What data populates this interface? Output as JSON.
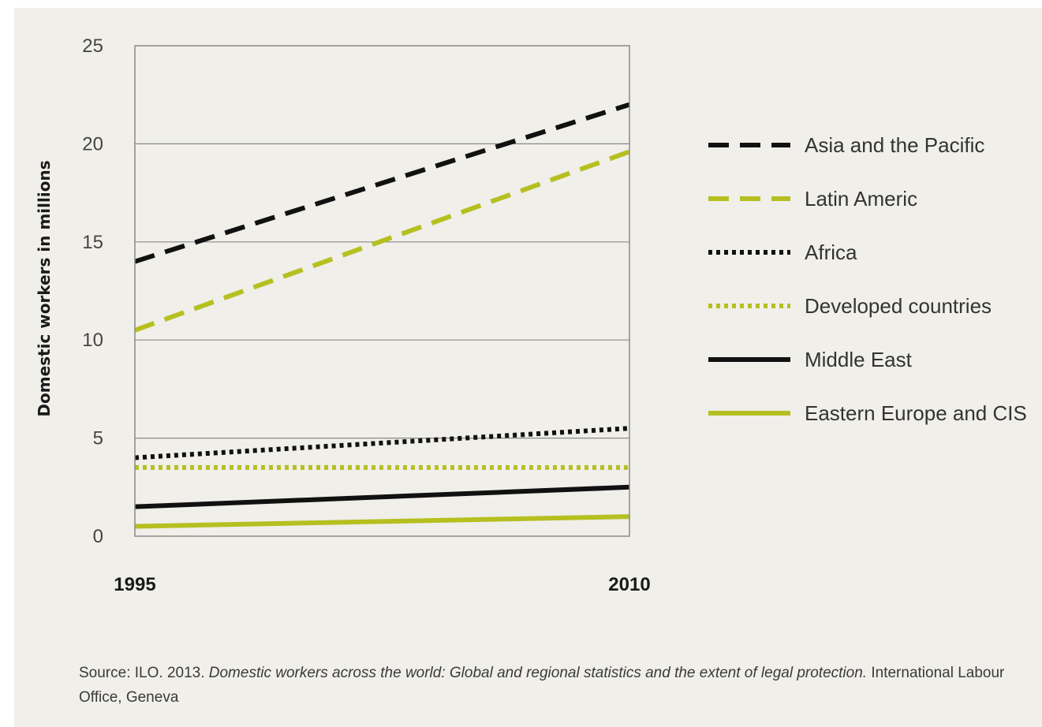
{
  "chart_data": {
    "type": "line",
    "x": [
      1995,
      2010
    ],
    "xticks": [
      "1995",
      "2010"
    ],
    "ylabel": "Domestic workers in millions",
    "ylim": [
      0,
      25
    ],
    "yticks": [
      "0",
      "5",
      "10",
      "15",
      "20",
      "25"
    ],
    "grid": "horizontal",
    "legend_position": "right",
    "series": [
      {
        "name": "Asia and the Pacific",
        "values": [
          14.0,
          22.0
        ],
        "color": "#111111",
        "style": "dashed"
      },
      {
        "name": "Latin Americ",
        "values": [
          10.5,
          19.6
        ],
        "color": "#b5c020",
        "style": "dashed"
      },
      {
        "name": "Africa",
        "values": [
          4.0,
          5.5
        ],
        "color": "#111111",
        "style": "dotted"
      },
      {
        "name": "Developed countries",
        "values": [
          3.5,
          3.5
        ],
        "color": "#b5c020",
        "style": "dotted"
      },
      {
        "name": "Middle East",
        "values": [
          1.5,
          2.5
        ],
        "color": "#111111",
        "style": "solid"
      },
      {
        "name": "Eastern Europe and CIS",
        "values": [
          0.5,
          1.0
        ],
        "color": "#b5c020",
        "style": "solid"
      }
    ]
  },
  "source": {
    "prefix": "Source: ILO. 2013. ",
    "title": "Domestic workers across the world: Global and regional statistics and the extent of legal protection.",
    "suffix": " International Labour Office, Geneva"
  }
}
